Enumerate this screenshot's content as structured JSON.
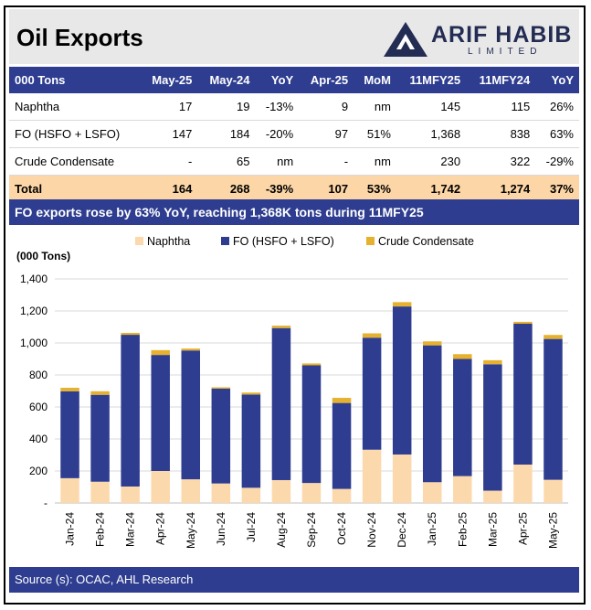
{
  "header": {
    "title": "Oil Exports",
    "logo_name": "ARIF HABIB",
    "logo_sub": "LIMITED"
  },
  "colors": {
    "navy": "#2e3d8f",
    "naphtha": "#fcd9ad",
    "fo": "#2e3d8f",
    "condensate": "#e6b12e",
    "total_row": "#fcd6a6"
  },
  "table": {
    "headers": [
      "000 Tons",
      "May-25",
      "May-24",
      "YoY",
      "Apr-25",
      "MoM",
      "11MFY25",
      "11MFY24",
      "YoY"
    ],
    "rows": [
      [
        "Naphtha",
        "17",
        "19",
        "-13%",
        "9",
        "nm",
        "145",
        "115",
        "26%"
      ],
      [
        "FO (HSFO + LSFO)",
        "147",
        "184",
        "-20%",
        "97",
        "51%",
        "1,368",
        "838",
        "63%"
      ],
      [
        "Crude Condensate",
        "-",
        "65",
        "nm",
        "-",
        "nm",
        "230",
        "322",
        "-29%"
      ]
    ],
    "total": [
      "Total",
      "164",
      "268",
      "-39%",
      "107",
      "53%",
      "1,742",
      "1,274",
      "37%"
    ]
  },
  "banner": "FO exports rose by 63% YoY, reaching 1,368K tons during 11MFY25",
  "chart_data": {
    "type": "bar",
    "stacked": true,
    "ylabel": "(000 Tons)",
    "ylim": [
      0,
      1400
    ],
    "yticks": [
      "-",
      "200",
      "400",
      "600",
      "800",
      "1,000",
      "1,200",
      "1,400"
    ],
    "grid": true,
    "legend_position": "top",
    "categories": [
      "Jan-24",
      "Feb-24",
      "Mar-24",
      "Apr-24",
      "May-24",
      "Jun-24",
      "Jul-24",
      "Aug-24",
      "Sep-24",
      "Oct-24",
      "Nov-24",
      "Dec-24",
      "Jan-25",
      "Feb-25",
      "Mar-25",
      "Apr-25",
      "May-25"
    ],
    "series": [
      {
        "name": "Naphtha",
        "values": [
          155,
          133,
          103,
          200,
          148,
          122,
          95,
          143,
          125,
          88,
          333,
          303,
          130,
          168,
          77,
          240,
          145
        ]
      },
      {
        "name": "FO (HSFO + LSFO)",
        "values": [
          543,
          543,
          948,
          725,
          805,
          593,
          583,
          950,
          735,
          537,
          700,
          925,
          855,
          732,
          790,
          880,
          880
        ]
      },
      {
        "name": "Crude Condensate",
        "values": [
          22,
          22,
          12,
          30,
          12,
          8,
          12,
          15,
          12,
          32,
          27,
          27,
          25,
          30,
          25,
          12,
          25
        ]
      }
    ]
  },
  "footer": "Source (s): OCAC, AHL Research"
}
